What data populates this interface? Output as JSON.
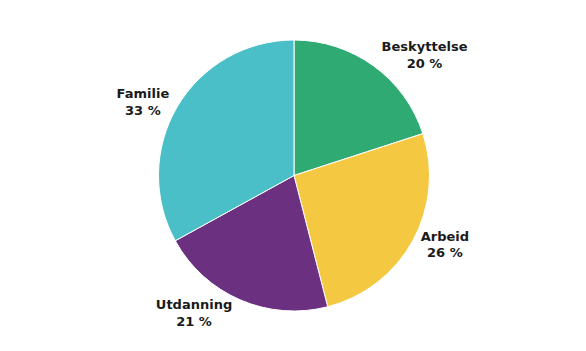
{
  "chart_data": {
    "type": "pie",
    "categories": [
      "Beskyttelse",
      "Arbeid",
      "Utdanning",
      "Familie"
    ],
    "values": [
      20,
      26,
      21,
      33
    ],
    "value_labels": [
      "20 %",
      "26 %",
      "21 %",
      "33 %"
    ],
    "colors": [
      "#2eaa72",
      "#f5c842",
      "#6b3080",
      "#4bbfc8"
    ],
    "data_labels": true
  }
}
